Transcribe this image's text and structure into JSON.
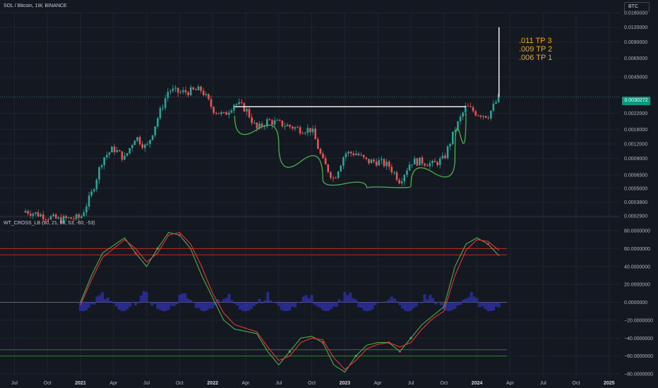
{
  "header": {
    "symbol_title": "SOL / Bitcoin, 1W, BINANCE",
    "currency_button": "BTC",
    "indicator_title": "WT_CROSS_LB (10, 21, 60, 53, -60, -53)"
  },
  "annotations": {
    "tp3": ".011 TP 3",
    "tp2": ".009 TP 2",
    "tp1": ".006 TP 1"
  },
  "last_price": "0.0030272",
  "colors": {
    "background": "#141821",
    "grid": "#1f2430",
    "candle_up": "#26a69a",
    "candle_down": "#ef5350",
    "annotation": "#f7a600",
    "cup_curve": "#4caf50",
    "neckline": "#ffffff",
    "wt1": "#4caf50",
    "wt2": "#e53935",
    "histogram": "#2b2f9c",
    "ob_levels": "#c62828",
    "os_levels": "#2e7d32"
  },
  "chart_data": [
    {
      "type": "candlestick",
      "title": "SOL / Bitcoin, 1W, BINANCE",
      "y_scale": "log",
      "y_tick_labels": [
        "0.0160000",
        "0.0120000",
        "0.0090000",
        "0.0065000",
        "0.0045000",
        "0.0030272",
        "0.0022000",
        "0.0016000",
        "0.0012000",
        "0.0009000",
        "0.0006500",
        "0.0005000",
        "0.0003800",
        "0.0002900"
      ],
      "y_ticks": [
        0.016,
        0.012,
        0.009,
        0.0065,
        0.0045,
        0.0022,
        0.0016,
        0.0012,
        0.0009,
        0.00065,
        0.0005,
        0.00038,
        0.00029
      ],
      "x_tick_labels": [
        "Jul",
        "Oct",
        "2021",
        "Apr",
        "Jul",
        "Oct",
        "2022",
        "Apr",
        "Jul",
        "Oct",
        "2023",
        "Apr",
        "Jul",
        "Oct",
        "2024",
        "Apr",
        "Jul",
        "Oct",
        "2025"
      ],
      "x_ticks": [
        "2020-07",
        "2020-10",
        "2021-01",
        "2021-04",
        "2021-07",
        "2021-10",
        "2022-01",
        "2022-04",
        "2022-07",
        "2022-10",
        "2023-01",
        "2023-04",
        "2023-07",
        "2023-10",
        "2024-01",
        "2024-04",
        "2024-07",
        "2024-10",
        "2025-01"
      ],
      "price_path": [
        [
          "2020-08",
          0.00032
        ],
        [
          "2020-11",
          0.00027
        ],
        [
          "2021-01",
          0.00028
        ],
        [
          "2021-02",
          0.00045
        ],
        [
          "2021-03",
          0.0009
        ],
        [
          "2021-04",
          0.0011
        ],
        [
          "2021-05",
          0.0009
        ],
        [
          "2021-06",
          0.0014
        ],
        [
          "2021-07",
          0.0011
        ],
        [
          "2021-08",
          0.002
        ],
        [
          "2021-09",
          0.0035
        ],
        [
          "2021-10",
          0.0033
        ],
        [
          "2021-11",
          0.0034
        ],
        [
          "2021-12",
          0.0035
        ],
        [
          "2022-01",
          0.0024
        ],
        [
          "2022-02",
          0.0021
        ],
        [
          "2022-03",
          0.0027
        ],
        [
          "2022-04",
          0.0024
        ],
        [
          "2022-05",
          0.0016
        ],
        [
          "2022-06",
          0.0019
        ],
        [
          "2022-07",
          0.0018
        ],
        [
          "2022-08",
          0.0017
        ],
        [
          "2022-09",
          0.0016
        ],
        [
          "2022-10",
          0.0016
        ],
        [
          "2022-11",
          0.00085
        ],
        [
          "2022-12",
          0.0006
        ],
        [
          "2023-01",
          0.001
        ],
        [
          "2023-02",
          0.001
        ],
        [
          "2023-03",
          0.00085
        ],
        [
          "2023-04",
          0.00085
        ],
        [
          "2023-05",
          0.00078
        ],
        [
          "2023-06",
          0.00058
        ],
        [
          "2023-07",
          0.00085
        ],
        [
          "2023-08",
          0.00085
        ],
        [
          "2023-09",
          0.0008
        ],
        [
          "2023-10",
          0.0009
        ],
        [
          "2023-11",
          0.0016
        ],
        [
          "2023-12",
          0.0025
        ],
        [
          "2024-01",
          0.0022
        ],
        [
          "2024-02",
          0.0021
        ],
        [
          "2024-03",
          0.0030272
        ]
      ],
      "neckline": {
        "start": "2022-03",
        "end": "2023-12",
        "price": 0.0025
      },
      "cup": [
        [
          "2022-03",
          0.0021
        ],
        [
          "2022-07",
          0.0012
        ],
        [
          "2022-11",
          0.0006
        ],
        [
          "2023-03",
          0.0005
        ],
        [
          "2023-07",
          0.00052
        ],
        [
          "2023-11",
          0.0009
        ],
        [
          "2023-12",
          0.0022
        ]
      ],
      "target_line": {
        "date": "2024-03",
        "from": 0.0030272,
        "to": 0.012
      }
    },
    {
      "type": "line",
      "title": "WT_CROSS_LB (10, 21, 60, 53, -60, -53)",
      "y_tick_labels": [
        "80.0000000",
        "60.0000000",
        "40.0000000",
        "20.0000000",
        "0.0000000",
        "−20.0000000",
        "−40.0000000",
        "−60.0000000",
        "−80.0000000"
      ],
      "y_ticks": [
        80,
        60,
        40,
        20,
        0,
        -20,
        -40,
        -60,
        -80
      ],
      "levels": [
        60,
        53,
        -53,
        -60
      ],
      "series": [
        {
          "values": [
            [
              "2021-01",
              0
            ],
            [
              "2021-02",
              30
            ],
            [
              "2021-03",
              55
            ],
            [
              "2021-05",
              72
            ],
            [
              "2021-06",
              55
            ],
            [
              "2021-07",
              40
            ],
            [
              "2021-08",
              60
            ],
            [
              "2021-09",
              78
            ],
            [
              "2021-10",
              75
            ],
            [
              "2021-11",
              60
            ],
            [
              "2021-12",
              30
            ],
            [
              "2022-01",
              5
            ],
            [
              "2022-02",
              -20
            ],
            [
              "2022-03",
              -30
            ],
            [
              "2022-05",
              -35
            ],
            [
              "2022-06",
              -55
            ],
            [
              "2022-07",
              -70
            ],
            [
              "2022-08",
              -55
            ],
            [
              "2022-09",
              -40
            ],
            [
              "2022-10",
              -38
            ],
            [
              "2022-11",
              -45
            ],
            [
              "2022-12",
              -70
            ],
            [
              "2023-01",
              -78
            ],
            [
              "2023-02",
              -60
            ],
            [
              "2023-03",
              -48
            ],
            [
              "2023-04",
              -45
            ],
            [
              "2023-05",
              -45
            ],
            [
              "2023-06",
              -55
            ],
            [
              "2023-07",
              -40
            ],
            [
              "2023-08",
              -25
            ],
            [
              "2023-09",
              -15
            ],
            [
              "2023-10",
              -5
            ],
            [
              "2023-11",
              40
            ],
            [
              "2023-12",
              65
            ],
            [
              "2024-01",
              72
            ],
            [
              "2024-02",
              65
            ],
            [
              "2024-03",
              52
            ]
          ]
        },
        {
          "values": [
            [
              "2021-01",
              -3
            ],
            [
              "2021-02",
              25
            ],
            [
              "2021-03",
              50
            ],
            [
              "2021-05",
              70
            ],
            [
              "2021-06",
              60
            ],
            [
              "2021-07",
              45
            ],
            [
              "2021-08",
              55
            ],
            [
              "2021-09",
              75
            ],
            [
              "2021-10",
              78
            ],
            [
              "2021-11",
              65
            ],
            [
              "2021-12",
              40
            ],
            [
              "2022-01",
              10
            ],
            [
              "2022-02",
              -12
            ],
            [
              "2022-03",
              -25
            ],
            [
              "2022-05",
              -33
            ],
            [
              "2022-06",
              -50
            ],
            [
              "2022-07",
              -65
            ],
            [
              "2022-08",
              -60
            ],
            [
              "2022-09",
              -45
            ],
            [
              "2022-10",
              -40
            ],
            [
              "2022-11",
              -42
            ],
            [
              "2022-12",
              -62
            ],
            [
              "2023-01",
              -75
            ],
            [
              "2023-02",
              -65
            ],
            [
              "2023-03",
              -52
            ],
            [
              "2023-04",
              -47
            ],
            [
              "2023-05",
              -45
            ],
            [
              "2023-06",
              -50
            ],
            [
              "2023-07",
              -45
            ],
            [
              "2023-08",
              -30
            ],
            [
              "2023-09",
              -18
            ],
            [
              "2023-10",
              -10
            ],
            [
              "2023-11",
              30
            ],
            [
              "2023-12",
              58
            ],
            [
              "2024-01",
              70
            ],
            [
              "2024-02",
              68
            ],
            [
              "2024-03",
              58
            ]
          ]
        }
      ],
      "histogram_range": [
        -10,
        13
      ]
    }
  ]
}
